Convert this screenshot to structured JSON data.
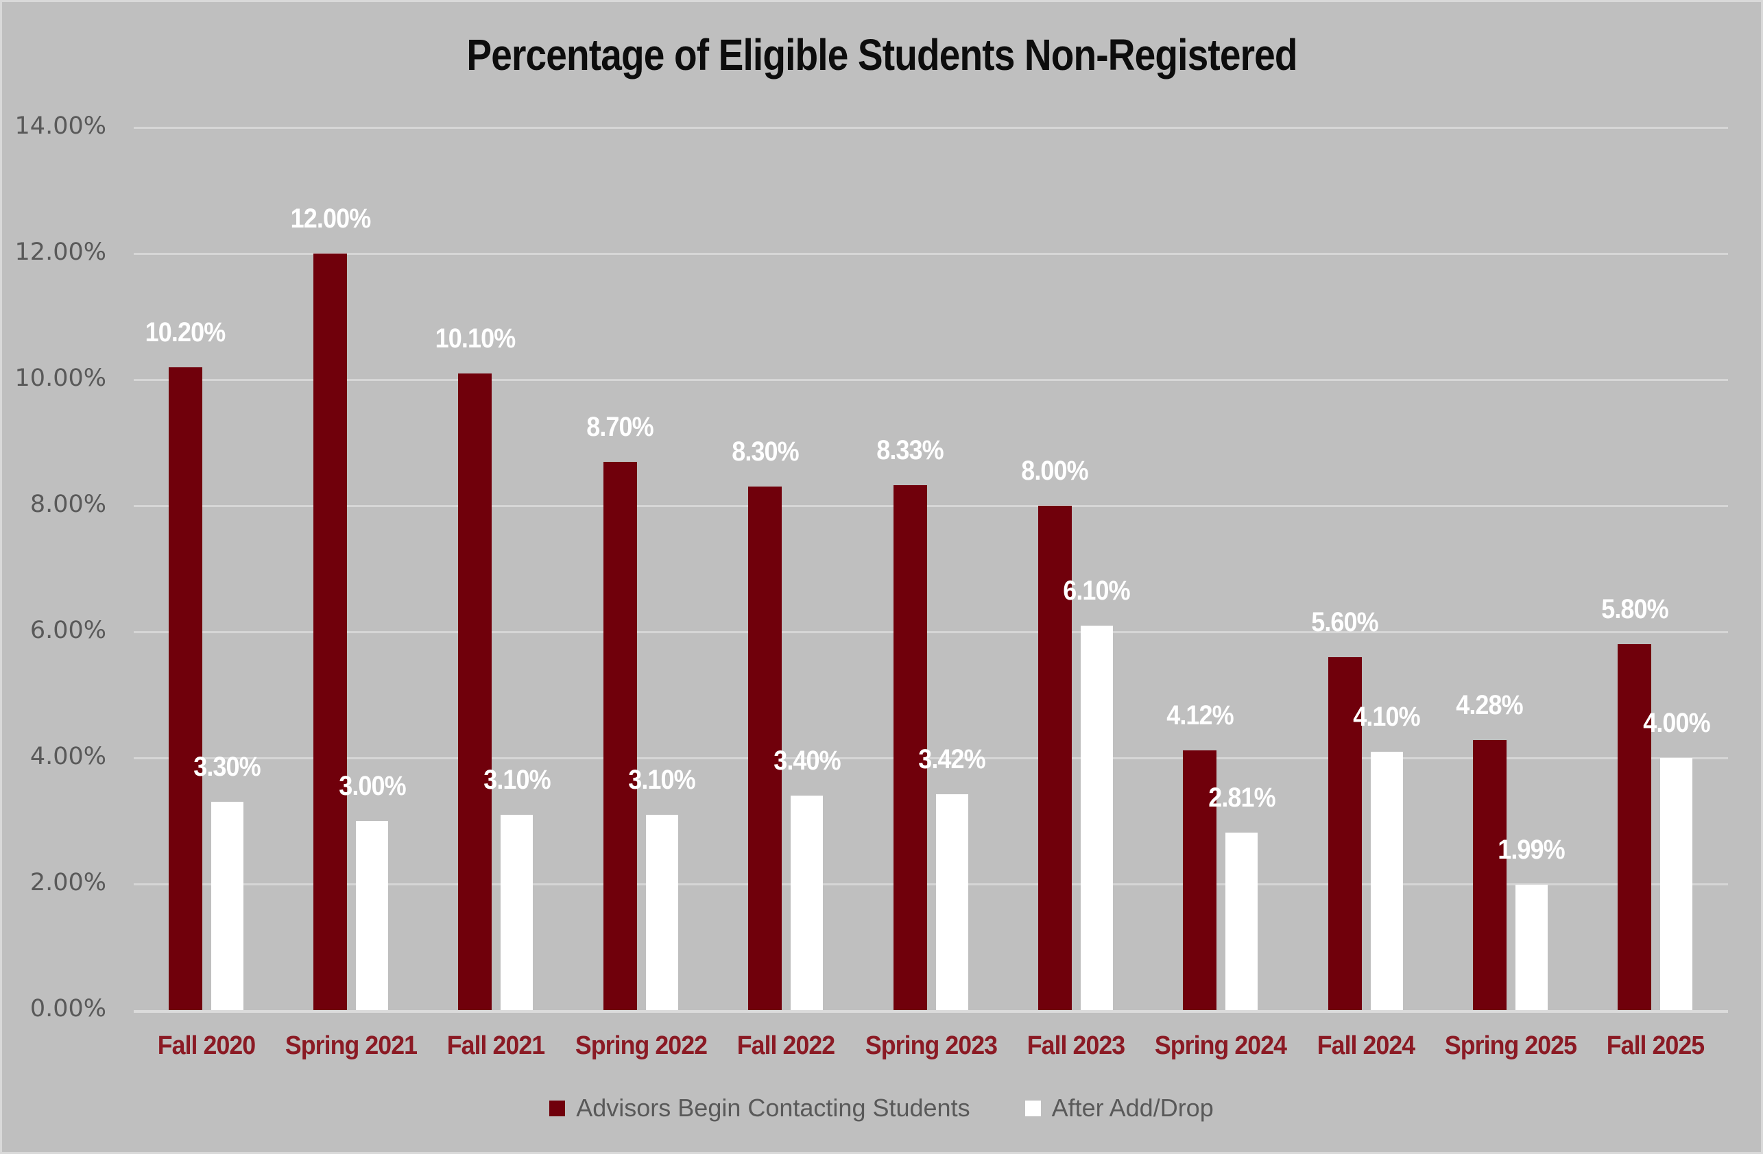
{
  "chart_data": {
    "type": "bar",
    "title": "Percentage of Eligible Students Non-Registered",
    "categories": [
      "Fall 2020",
      "Spring 2021",
      "Fall 2021",
      "Spring 2022",
      "Fall 2022",
      "Spring 2023",
      "Fall 2023",
      "Spring 2024",
      "Fall 2024",
      "Spring 2025",
      "Fall 2025"
    ],
    "series": [
      {
        "name": "Advisors Begin Contacting Students",
        "color": "#70000B",
        "values": [
          10.2,
          12.0,
          10.1,
          8.7,
          8.3,
          8.33,
          8.0,
          4.12,
          5.6,
          4.28,
          5.8
        ],
        "labels": [
          "10.20%",
          "12.00%",
          "10.10%",
          "8.70%",
          "8.30%",
          "8.33%",
          "8.00%",
          "4.12%",
          "5.60%",
          "4.28%",
          "5.80%"
        ]
      },
      {
        "name": "After Add/Drop",
        "color": "#FFFFFF",
        "values": [
          3.3,
          3.0,
          3.1,
          3.1,
          3.4,
          3.42,
          6.1,
          2.81,
          4.1,
          1.99,
          4.0
        ],
        "labels": [
          "3.30%",
          "3.00%",
          "3.10%",
          "3.10%",
          "3.40%",
          "3.42%",
          "6.10%",
          "2.81%",
          "4.10%",
          "1.99%",
          "4.00%"
        ]
      }
    ],
    "y_axis": {
      "min": 0,
      "max": 14,
      "tick_step": 2,
      "tick_labels": [
        "0.00%",
        "2.00%",
        "4.00%",
        "6.00%",
        "8.00%",
        "10.00%",
        "12.00%",
        "14.00%"
      ]
    },
    "x_axis_label": "",
    "y_axis_label": "",
    "grid": true,
    "legend_position": "bottom",
    "data_labels": "outside-end"
  },
  "colors": {
    "background": "#bfbfbf",
    "border": "#d9d9d9",
    "gridline": "#d6d6d6",
    "axis_line": "#dbdbdb",
    "title_text": "#0d0d0d",
    "ytick_text": "#595959",
    "category_text": "#8b1a24",
    "data_label_text": "#ffffff",
    "legend_text": "#595959",
    "series1_bar": "#70000B",
    "series2_bar": "#FFFFFF"
  }
}
